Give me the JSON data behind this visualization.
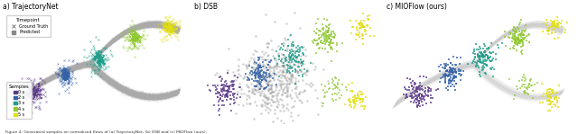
{
  "title_a": "a) TrajectoryNet",
  "title_b": "b) DSB",
  "title_c": "c) MIOFlow (ours)",
  "caption": "Figure 4: Generated samples on normalised flows of (a) TrajectoryNet, (b) DSB, and (c) MIOFlow (ours).",
  "timepoint_colors": [
    "#5c3a8a",
    "#3361a8",
    "#1e9e8a",
    "#8fc832",
    "#e2de10"
  ],
  "timepoint_labels": [
    "0 s",
    "2 s",
    "3 s",
    "4 s",
    "5 s"
  ],
  "bg_color": "#ffffff",
  "n_points": 120
}
